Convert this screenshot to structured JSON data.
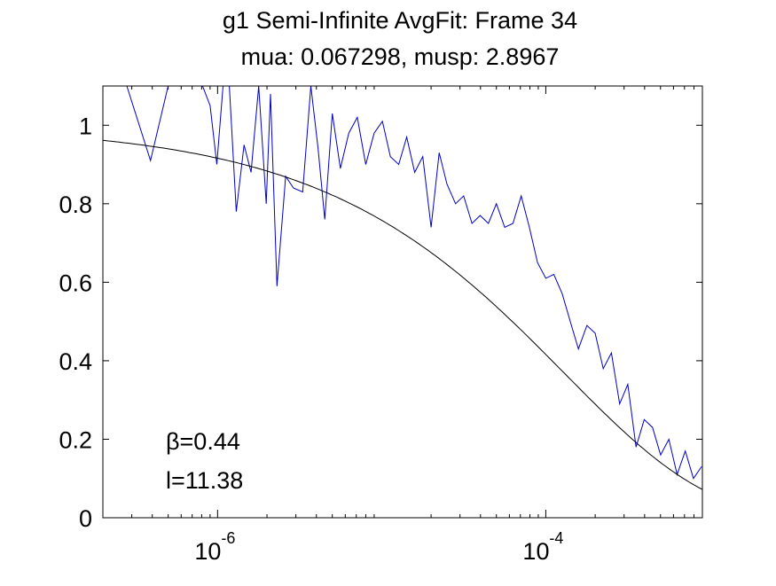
{
  "chart_data": {
    "type": "line",
    "title": "g1 Semi-Infinite AvgFit: Frame 34",
    "subtitle": "mua: 0.067298, musp: 2.8967",
    "xlabel": "",
    "ylabel": "",
    "xscale": "log",
    "xlim": [
      2e-07,
      0.0009
    ],
    "ylim": [
      0,
      1.1
    ],
    "grid": false,
    "colors": {
      "data": "#0000c8",
      "fit": "#000000",
      "axes": "#000000",
      "background": "#ffffff"
    },
    "x_ticks": [
      {
        "value": 1e-06,
        "base": "10",
        "exp": "-6"
      },
      {
        "value": 0.0001,
        "base": "10",
        "exp": "-4"
      }
    ],
    "y_ticks": [
      {
        "value": 0,
        "label": "0"
      },
      {
        "value": 0.2,
        "label": "0.2"
      },
      {
        "value": 0.4,
        "label": "0.4"
      },
      {
        "value": 0.6,
        "label": "0.6"
      },
      {
        "value": 0.8,
        "label": "0.8"
      },
      {
        "value": 1,
        "label": "1"
      }
    ],
    "annotations": [
      {
        "label": "β=0.44"
      },
      {
        "label": "l=11.38"
      }
    ],
    "series": [
      {
        "kind": "data",
        "x": [
          2.8e-07,
          3.9e-07,
          5e-07,
          6.2e-07,
          7.2e-07,
          8.1e-07,
          9e-07,
          9.9e-07,
          1.08e-06,
          1.18e-06,
          1.3e-06,
          1.45e-06,
          1.6e-06,
          1.78e-06,
          1.98e-06,
          2.1e-06,
          2.3e-06,
          2.6e-06,
          2.9e-06,
          3.3e-06,
          3.7e-06,
          4.1e-06,
          4.5e-06,
          5e-06,
          5.6e-06,
          6.3e-06,
          7.1e-06,
          8e-06,
          9e-06,
          1.01e-05,
          1.13e-05,
          1.27e-05,
          1.42e-05,
          1.59e-05,
          1.78e-05,
          2e-05,
          2.24e-05,
          2.5e-05,
          2.82e-05,
          3.16e-05,
          3.55e-05,
          3.98e-05,
          4.47e-05,
          5e-05,
          5.62e-05,
          6.31e-05,
          7.08e-05,
          7.94e-05,
          8.91e-05,
          0.0001,
          0.000112,
          0.000126,
          0.000141,
          0.000158,
          0.000178,
          0.0002,
          0.000224,
          0.000251,
          0.000282,
          0.000316,
          0.000355,
          0.000398,
          0.000447,
          0.000501,
          0.000562,
          0.000631,
          0.000708,
          0.000794,
          0.00089
        ],
        "y": [
          1.1,
          0.91,
          1.1,
          1.1,
          1.1,
          1.1,
          1.05,
          0.9,
          1.1,
          1.1,
          0.78,
          0.95,
          0.88,
          1.1,
          0.8,
          1.08,
          0.59,
          0.87,
          0.84,
          0.83,
          1.1,
          0.94,
          0.76,
          1.03,
          0.89,
          0.98,
          1.02,
          0.9,
          0.98,
          1.01,
          0.92,
          0.9,
          0.97,
          0.88,
          0.92,
          0.74,
          0.93,
          0.85,
          0.8,
          0.82,
          0.75,
          0.77,
          0.75,
          0.8,
          0.74,
          0.75,
          0.82,
          0.74,
          0.65,
          0.61,
          0.62,
          0.57,
          0.5,
          0.43,
          0.49,
          0.47,
          0.38,
          0.42,
          0.29,
          0.34,
          0.18,
          0.25,
          0.23,
          0.16,
          0.2,
          0.11,
          0.17,
          0.1,
          0.13
        ]
      },
      {
        "kind": "fit",
        "beta": 0.44,
        "tau": 0.00013
      }
    ]
  }
}
